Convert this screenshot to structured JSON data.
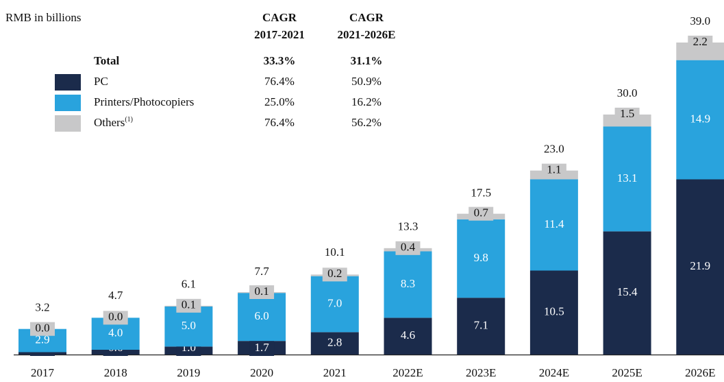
{
  "chart_data": {
    "type": "stacked_bar",
    "unit_label": "RMB in billions",
    "categories": [
      "2017",
      "2018",
      "2019",
      "2020",
      "2021",
      "2022E",
      "2023E",
      "2024E",
      "2025E",
      "2026E"
    ],
    "series": [
      {
        "name": "PC",
        "color": "#1b2b4b",
        "values": [
          0.3,
          0.6,
          1.0,
          1.7,
          2.8,
          4.6,
          7.1,
          10.5,
          15.4,
          21.9
        ],
        "value_labels": [
          "0.3",
          "0.6",
          "1.0",
          "1.7",
          "2.8",
          "4.6",
          "7.1",
          "10.5",
          "15.4",
          "21.9"
        ],
        "cagr": [
          "76.4%",
          "50.9%"
        ]
      },
      {
        "name": "Printers/Photocopiers",
        "color": "#29a3dd",
        "values": [
          2.9,
          4.0,
          5.0,
          6.0,
          7.0,
          8.3,
          9.8,
          11.4,
          13.1,
          14.9
        ],
        "value_labels": [
          "2.9",
          "4.0",
          "5.0",
          "6.0",
          "7.0",
          "8.3",
          "9.8",
          "11.4",
          "13.1",
          "14.9"
        ],
        "cagr": [
          "25.0%",
          "16.2%"
        ]
      },
      {
        "name": "Others",
        "name_note": "(1)",
        "color": "#c8c8c9",
        "values": [
          0.0,
          0.0,
          0.1,
          0.1,
          0.2,
          0.4,
          0.7,
          1.1,
          1.5,
          2.2
        ],
        "value_labels": [
          "0.0",
          "0.0",
          "0.1",
          "0.1",
          "0.2",
          "0.4",
          "0.7",
          "1.1",
          "1.5",
          "2.2"
        ],
        "cagr": [
          "76.4%",
          "56.2%"
        ]
      }
    ],
    "totals": [
      3.2,
      4.7,
      6.1,
      7.7,
      10.1,
      13.3,
      17.5,
      23.0,
      30.0,
      39.0
    ],
    "total_labels": [
      "3.2",
      "4.7",
      "6.1",
      "7.7",
      "10.1",
      "13.3",
      "17.5",
      "23.0",
      "30.0",
      "39.0"
    ],
    "cagr_headers": [
      [
        "CAGR",
        "2017-2021"
      ],
      [
        "CAGR",
        "2021-2026E"
      ]
    ],
    "total_row": {
      "label": "Total",
      "cagr": [
        "33.3%",
        "31.1%"
      ]
    }
  }
}
